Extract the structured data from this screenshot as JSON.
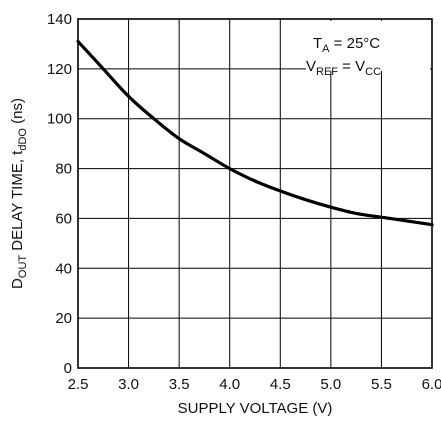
{
  "chart_data": {
    "type": "line",
    "title": "",
    "xlabel": "SUPPLY VOLTAGE (V)",
    "ylabel": {
      "parts": [
        {
          "text": "D",
          "sub": false
        },
        {
          "text": "OUT",
          "sub": true
        },
        {
          "text": " DELAY TIME, t",
          "sub": false
        },
        {
          "text": "dDO",
          "sub": true
        },
        {
          "text": " (ns)",
          "sub": false
        }
      ]
    },
    "xlim": [
      2.5,
      6.0
    ],
    "ylim": [
      0,
      140
    ],
    "xticks": [
      2.5,
      3.0,
      3.5,
      4.0,
      4.5,
      5.0,
      5.5,
      6.0
    ],
    "xtick_labels": [
      "2.5",
      "3.0",
      "3.5",
      "4.0",
      "4.5",
      "5.0",
      "5.5",
      "6.0"
    ],
    "yticks": [
      0,
      20,
      40,
      60,
      80,
      100,
      120,
      140
    ],
    "ytick_labels": [
      "0",
      "20",
      "40",
      "60",
      "80",
      "100",
      "120",
      "140"
    ],
    "grid": true,
    "legend": "none",
    "series": [
      {
        "x": [
          2.5,
          2.75,
          3.0,
          3.25,
          3.5,
          3.75,
          4.0,
          4.25,
          4.5,
          4.75,
          5.0,
          5.25,
          5.5,
          5.75,
          6.0
        ],
        "y": [
          131,
          120,
          109,
          100,
          92,
          86,
          80,
          75,
          71,
          67.5,
          64.5,
          62,
          60.5,
          59,
          57.5
        ],
        "color": "#000000"
      }
    ],
    "annotations": [
      {
        "parts": [
          {
            "text": "T",
            "sub": false
          },
          {
            "text": "A",
            "sub": true
          },
          {
            "text": " = 25°C",
            "sub": false
          }
        ]
      },
      {
        "parts": [
          {
            "text": "V",
            "sub": false
          },
          {
            "text": "REF",
            "sub": true
          },
          {
            "text": " = V",
            "sub": false
          },
          {
            "text": "CC",
            "sub": true
          }
        ]
      }
    ]
  }
}
